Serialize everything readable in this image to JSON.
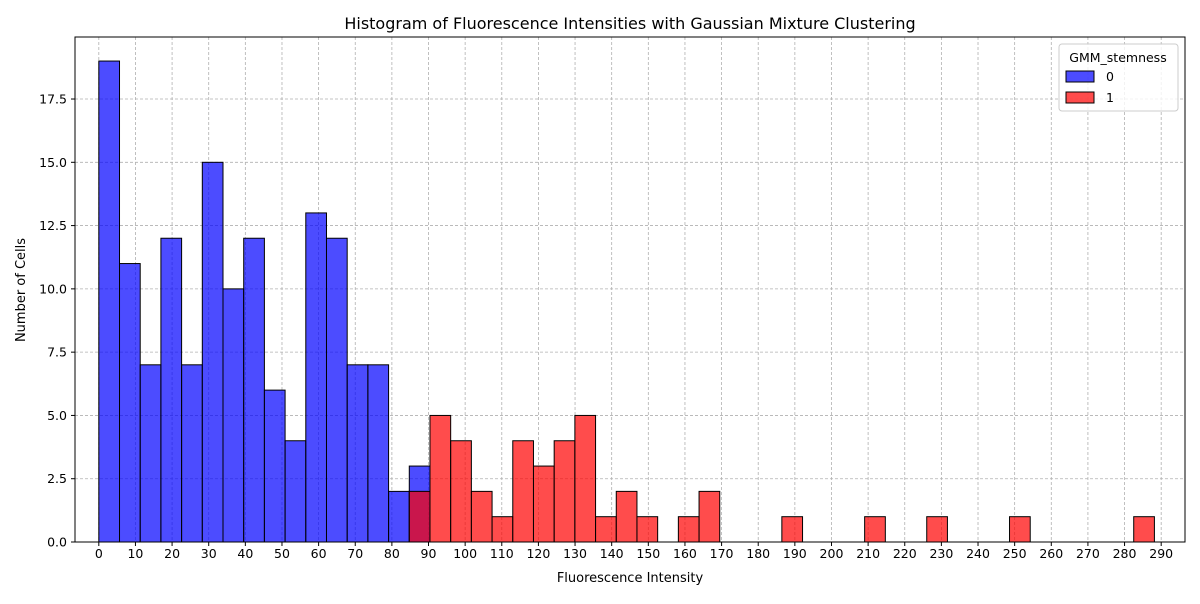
{
  "chart_data": {
    "type": "bar",
    "title": "Histogram of Fluorescence Intensities with Gaussian Mixture Clustering",
    "xlabel": "Fluorescence Intensity",
    "ylabel": "Number of Cells",
    "xlim": [
      -6.5,
      296.5
    ],
    "ylim": [
      0,
      19.95
    ],
    "bin_width": 5.65,
    "x_ticks": [
      0,
      10,
      20,
      30,
      40,
      50,
      60,
      70,
      80,
      90,
      100,
      110,
      120,
      130,
      140,
      150,
      160,
      170,
      180,
      190,
      200,
      210,
      220,
      230,
      240,
      250,
      260,
      270,
      280,
      290
    ],
    "x_tick_labels": [
      "0",
      "10",
      "20",
      "30",
      "40",
      "50",
      "60",
      "70",
      "80",
      "90",
      "100",
      "110",
      "120",
      "130",
      "140",
      "150",
      "160",
      "170",
      "180",
      "190",
      "200",
      "210",
      "220",
      "230",
      "240",
      "250",
      "260",
      "270",
      "280",
      "290"
    ],
    "y_ticks": [
      0,
      2.5,
      5,
      7.5,
      10,
      12.5,
      15,
      17.5
    ],
    "y_tick_labels": [
      "0.0",
      "2.5",
      "5.0",
      "7.5",
      "10.0",
      "12.5",
      "15.0",
      "17.5"
    ],
    "grid": true,
    "legend": {
      "title": "GMM_stemness",
      "placement": "top-right",
      "entries": [
        {
          "label": "0",
          "color": "#0000ff"
        },
        {
          "label": "1",
          "color": "#ff0000"
        }
      ]
    },
    "series": [
      {
        "name": "0",
        "color": "#0000ff",
        "bin_starts": [
          0,
          5.65,
          11.3,
          16.95,
          22.6,
          28.25,
          33.9,
          39.55,
          45.2,
          50.85,
          56.5,
          62.15,
          67.8,
          73.45,
          79.1,
          84.75
        ],
        "values": [
          19,
          11,
          7,
          12,
          7,
          15,
          10,
          12,
          6,
          4,
          13,
          12,
          7,
          7,
          2,
          3
        ]
      },
      {
        "name": "1",
        "color": "#ff0000",
        "bin_starts": [
          84.75,
          90.4,
          96.05,
          101.7,
          107.35,
          113.0,
          118.65,
          124.3,
          129.95,
          135.6,
          141.25,
          146.9,
          158.2,
          163.85,
          186.45,
          209.05,
          226.0,
          248.6,
          282.5
        ],
        "values": [
          2,
          5,
          4,
          2,
          1,
          4,
          3,
          4,
          5,
          1,
          2,
          1,
          1,
          2,
          1,
          1,
          1,
          1,
          1
        ]
      }
    ]
  }
}
